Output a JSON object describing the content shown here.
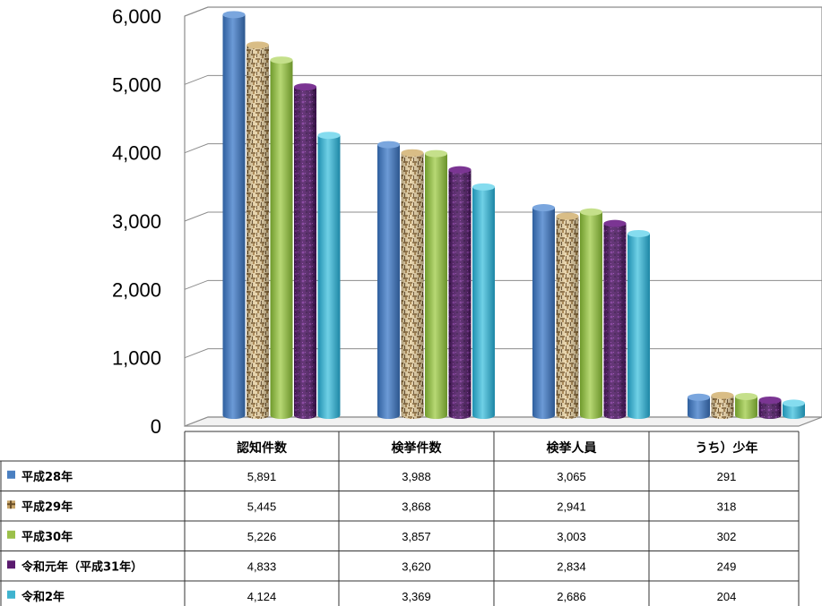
{
  "chart_data": {
    "type": "bar",
    "categories": [
      "認知件数",
      "検挙件数",
      "検挙人員",
      "うち）少年"
    ],
    "series": [
      {
        "name": "平成28年",
        "values": [
          5891,
          3988,
          3065,
          291
        ],
        "color": "#4a7fc1",
        "pattern": "solid"
      },
      {
        "name": "平成29年",
        "values": [
          5445,
          3868,
          2941,
          318
        ],
        "color": "#c8a56a",
        "pattern": "wicker"
      },
      {
        "name": "平成30年",
        "values": [
          5226,
          3857,
          3003,
          302
        ],
        "color": "#9bc04a",
        "pattern": "solid"
      },
      {
        "name": "令和元年（平成31年）",
        "values": [
          4833,
          3620,
          2834,
          249
        ],
        "color": "#5a1a6e",
        "pattern": "texture"
      },
      {
        "name": "令和2年",
        "values": [
          4124,
          3369,
          2686,
          204
        ],
        "color": "#3fb3cf",
        "pattern": "solid"
      }
    ],
    "value_labels": [
      [
        "5,891",
        "3,988",
        "3,065",
        "291"
      ],
      [
        "5,445",
        "3,868",
        "2,941",
        "318"
      ],
      [
        "5,226",
        "3,857",
        "3,003",
        "302"
      ],
      [
        "4,833",
        "3,620",
        "2,834",
        "249"
      ],
      [
        "4,124",
        "3,369",
        "2,686",
        "204"
      ]
    ],
    "yticks": [
      "0",
      "1,000",
      "2,000",
      "3,000",
      "4,000",
      "5,000",
      "6,000"
    ],
    "ylim": [
      0,
      6000
    ],
    "grid": true,
    "legend": "data-table-left"
  }
}
